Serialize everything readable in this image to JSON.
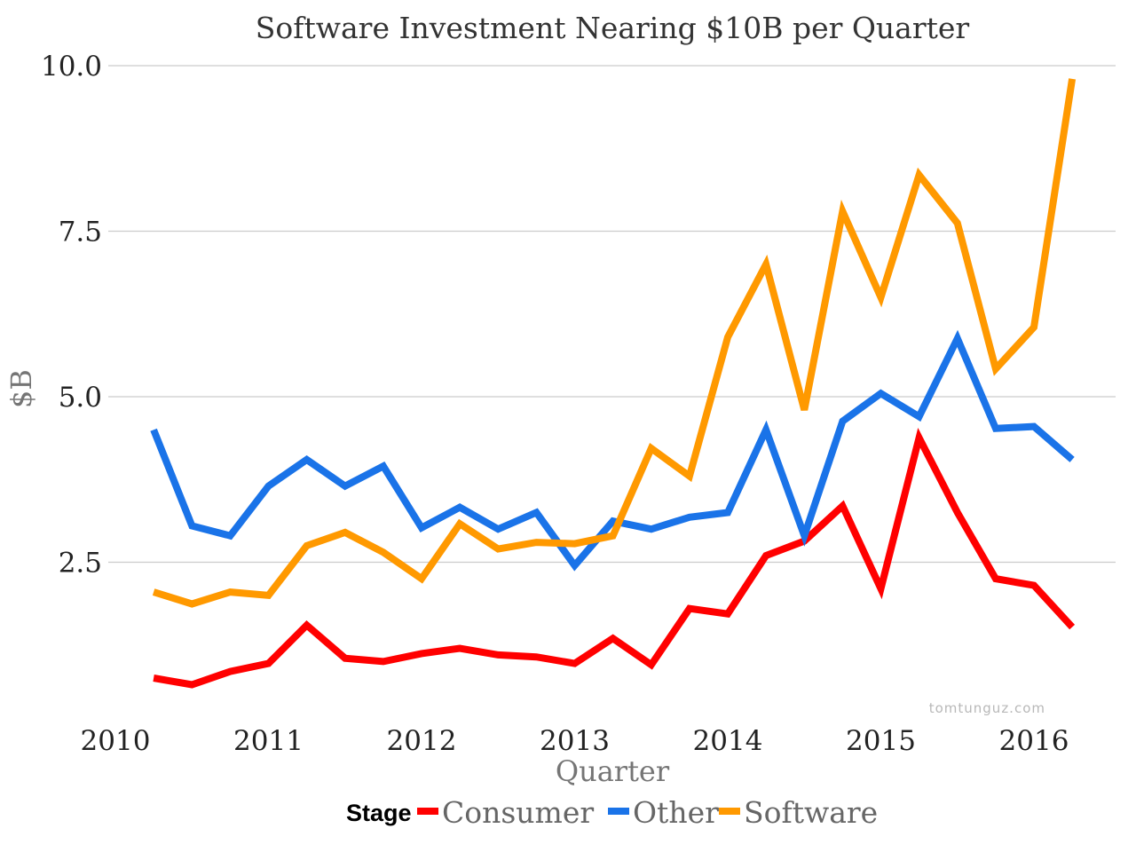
{
  "chart_data": {
    "type": "line",
    "title": "Software Investment Nearing $10B per Quarter",
    "xlabel": "Quarter",
    "ylabel": "$B",
    "xlim": [
      2010,
      2016.4
    ],
    "ylim": [
      0,
      10
    ],
    "y_ticks": [
      {
        "value": 2.5,
        "label": "2.5"
      },
      {
        "value": 5.0,
        "label": "5.0"
      },
      {
        "value": 7.5,
        "label": "7.5"
      },
      {
        "value": 10.0,
        "label": "10.0"
      }
    ],
    "x_ticks": [
      {
        "value": 2010,
        "label": "2010"
      },
      {
        "value": 2011,
        "label": "2011"
      },
      {
        "value": 2012,
        "label": "2012"
      },
      {
        "value": 2013,
        "label": "2013"
      },
      {
        "value": 2014,
        "label": "2014"
      },
      {
        "value": 2015,
        "label": "2015"
      },
      {
        "value": 2016,
        "label": "2016"
      }
    ],
    "grid": true,
    "legend_position": "bottom",
    "legend_title": "Stage",
    "x": [
      2010.25,
      2010.5,
      2010.75,
      2011.0,
      2011.25,
      2011.5,
      2011.75,
      2012.0,
      2012.25,
      2012.5,
      2012.75,
      2013.0,
      2013.25,
      2013.5,
      2013.75,
      2014.0,
      2014.25,
      2014.5,
      2014.75,
      2015.0,
      2015.25,
      2015.5,
      2015.75,
      2016.0,
      2016.25
    ],
    "series": [
      {
        "name": "Consumer",
        "color": "#ff0000",
        "values": [
          0.75,
          0.65,
          0.85,
          0.97,
          1.55,
          1.05,
          1.0,
          1.12,
          1.2,
          1.1,
          1.07,
          0.97,
          1.35,
          0.95,
          1.8,
          1.72,
          2.6,
          2.82,
          3.35,
          2.1,
          4.38,
          3.25,
          2.25,
          2.15,
          1.52
        ]
      },
      {
        "name": "Other",
        "color": "#1a73e8",
        "values": [
          4.5,
          3.05,
          2.9,
          3.65,
          4.05,
          3.65,
          3.95,
          3.02,
          3.33,
          3.0,
          3.25,
          2.45,
          3.12,
          3.0,
          3.18,
          3.25,
          4.5,
          2.9,
          4.63,
          5.05,
          4.7,
          5.88,
          4.52,
          4.55,
          4.05
        ]
      },
      {
        "name": "Software",
        "color": "#ff9900",
        "values": [
          2.05,
          1.87,
          2.05,
          2.0,
          2.75,
          2.95,
          2.65,
          2.25,
          3.08,
          2.7,
          2.8,
          2.78,
          2.9,
          4.22,
          3.8,
          5.9,
          7.0,
          4.8,
          7.8,
          6.5,
          8.35,
          7.62,
          5.42,
          6.05,
          9.8
        ]
      }
    ]
  },
  "watermark": "tomtunguz.com"
}
